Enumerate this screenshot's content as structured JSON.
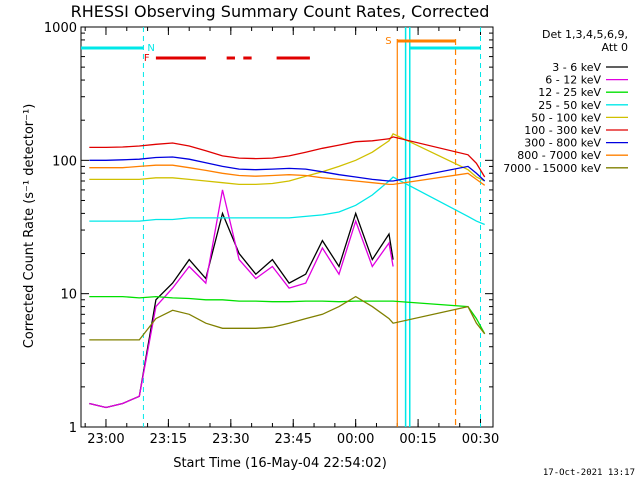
{
  "chart_data": {
    "type": "line",
    "title": "RHESSI Observing Summary Count Rates, Corrected",
    "xlabel": "Start Time (16-May-04 22:54:02)",
    "ylabel": "Corrected Count Rate (s⁻¹ detector⁻¹)",
    "yscale": "log",
    "ylim": [
      1,
      1000
    ],
    "xlim": [
      "22:54",
      "00:33"
    ],
    "x_ticks": [
      "23:00",
      "23:15",
      "23:30",
      "23:45",
      "00:00",
      "00:15",
      "00:30"
    ],
    "y_ticks": [
      "1",
      "10",
      "100",
      "1000"
    ],
    "grid": false,
    "legend_position": "right",
    "legend_header": [
      "Det 1,3,4,5,6,9,",
      "Att 0"
    ],
    "footer_date": "17-Oct-2021 13:17",
    "x": [
      "22:56",
      "23:00",
      "23:04",
      "23:08",
      "23:12",
      "23:16",
      "23:20",
      "23:24",
      "23:28",
      "23:32",
      "23:36",
      "23:40",
      "23:44",
      "23:48",
      "23:52",
      "23:56",
      "00:00",
      "00:04",
      "00:08",
      "00:09",
      "00:27",
      "00:29",
      "00:31"
    ],
    "series": [
      {
        "name": "3 - 6 keV",
        "color": "#000000",
        "values": [
          1.5,
          1.4,
          1.5,
          1.7,
          9,
          12,
          18,
          13,
          40,
          20,
          14,
          18,
          12,
          14,
          25,
          16,
          40,
          18,
          28,
          18,
          null,
          null,
          null
        ]
      },
      {
        "name": "6 - 12 keV",
        "color": "#e000e0",
        "values": [
          1.5,
          1.4,
          1.5,
          1.7,
          8,
          11,
          16,
          12,
          60,
          18,
          13,
          16,
          11,
          12,
          22,
          14,
          35,
          16,
          24,
          16,
          null,
          null,
          null
        ]
      },
      {
        "name": "12 - 25 keV",
        "color": "#00e000",
        "values": [
          9.5,
          9.5,
          9.5,
          9.3,
          9.5,
          9.3,
          9.2,
          9.0,
          9.0,
          8.8,
          8.8,
          8.7,
          8.7,
          8.8,
          8.8,
          8.7,
          8.8,
          8.8,
          8.8,
          8.8,
          8,
          6.5,
          5
        ]
      },
      {
        "name": "25 - 50 keV",
        "color": "#00e8e8",
        "values": [
          35,
          35,
          35,
          35,
          36,
          36,
          37,
          37,
          37,
          37,
          37,
          37,
          37,
          38,
          39,
          41,
          46,
          55,
          70,
          75,
          38,
          35,
          33
        ]
      },
      {
        "name": "50 - 100 keV",
        "color": "#d0c000",
        "values": [
          72,
          72,
          72,
          72,
          74,
          74,
          72,
          70,
          68,
          66,
          66,
          67,
          70,
          76,
          82,
          90,
          100,
          115,
          140,
          158,
          85,
          75,
          70
        ]
      },
      {
        "name": "100 - 300 keV",
        "color": "#e00000",
        "values": [
          125,
          125,
          126,
          128,
          132,
          135,
          128,
          118,
          108,
          104,
          103,
          104,
          108,
          115,
          123,
          130,
          138,
          140,
          145,
          150,
          110,
          95,
          75
        ]
      },
      {
        "name": "300 - 800 keV",
        "color": "#0000e0",
        "values": [
          100,
          100,
          101,
          102,
          105,
          106,
          102,
          96,
          90,
          86,
          85,
          86,
          87,
          86,
          82,
          78,
          75,
          72,
          70,
          70,
          90,
          80,
          70
        ]
      },
      {
        "name": "800 - 7000 keV",
        "color": "#ff8000",
        "values": [
          88,
          88,
          88,
          90,
          92,
          92,
          88,
          84,
          80,
          77,
          76,
          77,
          78,
          77,
          74,
          72,
          70,
          68,
          66,
          66,
          80,
          72,
          65
        ]
      },
      {
        "name": "7000 - 15000 keV",
        "color": "#808000",
        "values": [
          4.5,
          4.5,
          4.5,
          4.5,
          6.5,
          7.5,
          7.0,
          6.0,
          5.5,
          5.5,
          5.5,
          5.6,
          6.0,
          6.5,
          7.0,
          8.0,
          9.5,
          8.0,
          6.5,
          6.0,
          8,
          6,
          5
        ]
      }
    ],
    "flags": {
      "N_label": "N",
      "F_label": "F",
      "S_label": "S",
      "F_segments": [
        [
          "23:12",
          "23:24"
        ],
        [
          "23:29",
          "23:31"
        ],
        [
          "23:33",
          "23:35"
        ],
        [
          "23:41",
          "23:49"
        ]
      ]
    }
  }
}
